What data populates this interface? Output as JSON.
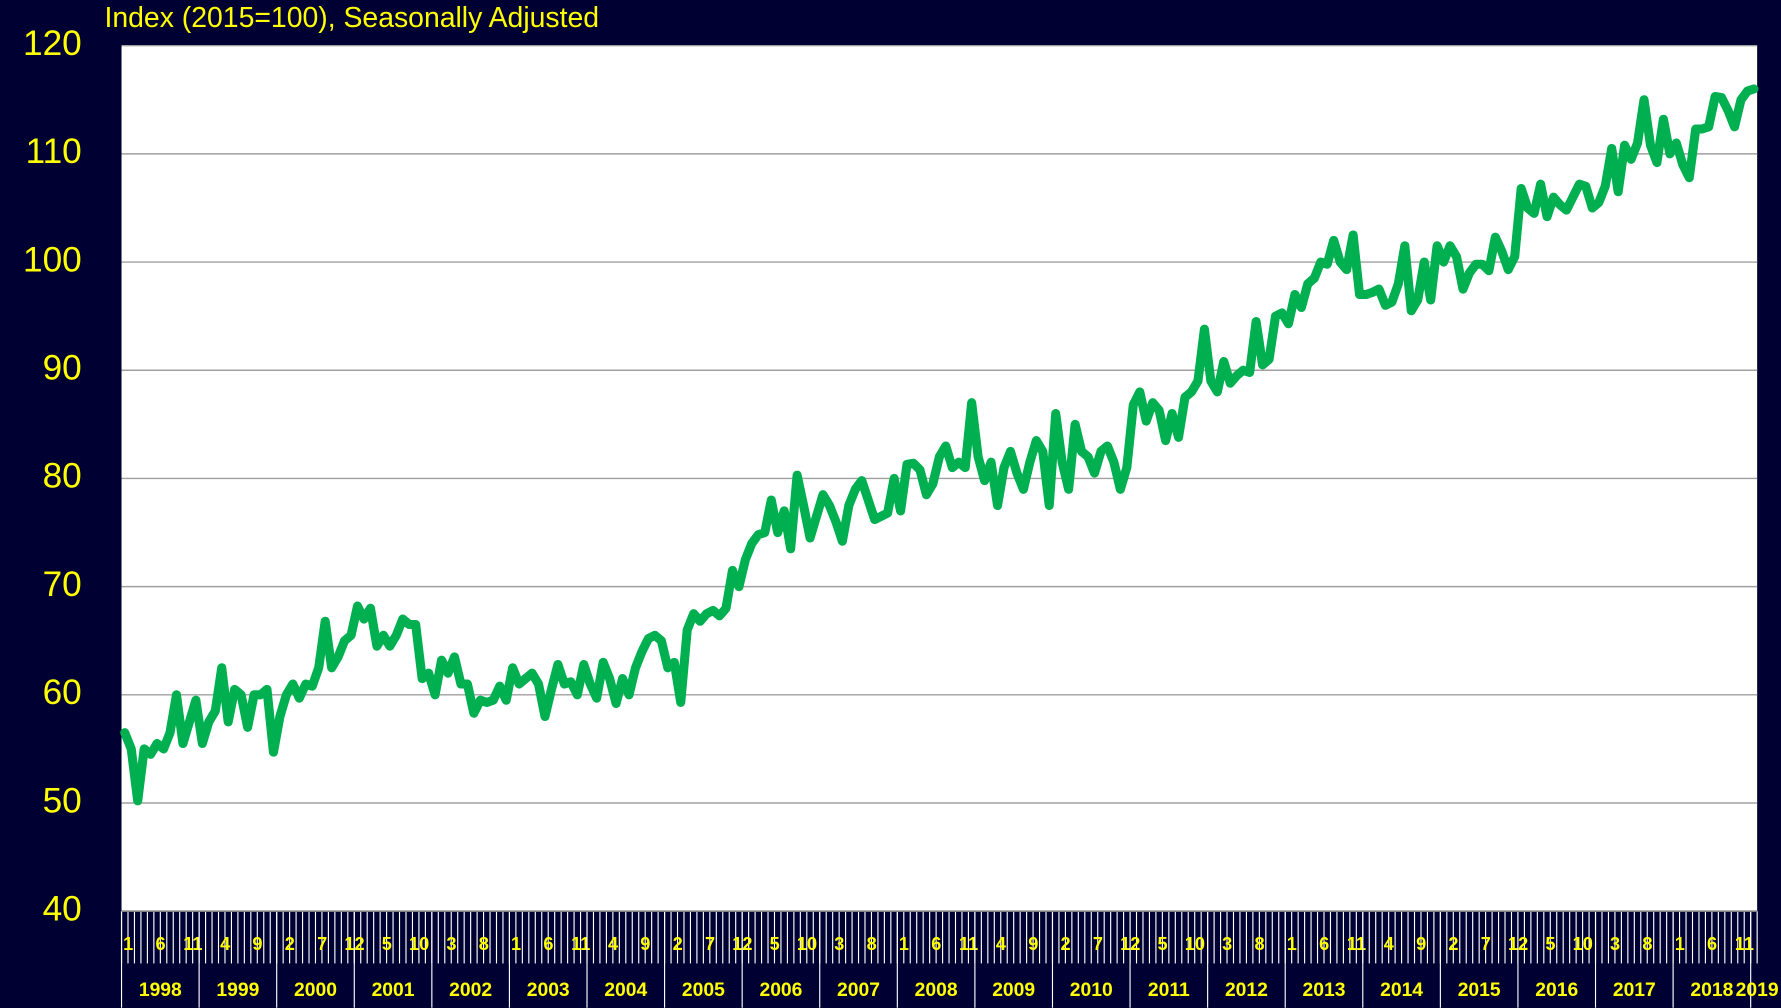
{
  "chart_data": {
    "type": "line",
    "title": "Index (2015=100), Seasonally Adjusted",
    "categories": [
      "1",
      null,
      null,
      null,
      null,
      "6",
      null,
      null,
      null,
      null,
      "11",
      null,
      null,
      null,
      null,
      "4",
      null,
      null,
      null,
      null,
      "9",
      null,
      null,
      null,
      null,
      "2",
      null,
      null,
      null,
      null,
      "7",
      null,
      null,
      null,
      null,
      "12",
      null,
      null,
      null,
      null,
      "5",
      null,
      null,
      null,
      null,
      "10",
      null,
      null,
      null,
      null,
      "3",
      null,
      null,
      null,
      null,
      "8",
      null,
      null,
      null,
      null,
      "1",
      null,
      null,
      null,
      null,
      "6",
      null,
      null,
      null,
      null,
      "11",
      null,
      null,
      null,
      null,
      "4",
      null,
      null,
      null,
      null,
      "9",
      null,
      null,
      null,
      null,
      "2",
      null,
      null,
      null,
      null,
      "7",
      null,
      null,
      null,
      null,
      "12",
      null,
      null,
      null,
      null,
      "5",
      null,
      null,
      null,
      null,
      "10",
      null,
      null,
      null,
      null,
      "3",
      null,
      null,
      null,
      null,
      "8",
      null,
      null,
      null,
      null,
      "1",
      null,
      null,
      null,
      null,
      "6",
      null,
      null,
      null,
      null,
      "11",
      null,
      null,
      null,
      null,
      "4",
      null,
      null,
      null,
      null,
      "9",
      null,
      null,
      null,
      null,
      "2",
      null,
      null,
      null,
      null,
      "7",
      null,
      null,
      null,
      null,
      "12",
      null,
      null,
      null,
      null,
      "5",
      null,
      null,
      null,
      null,
      "10",
      null,
      null,
      null,
      null,
      "3",
      null,
      null,
      null,
      null,
      "8",
      null,
      null,
      null,
      null,
      "1",
      null,
      null,
      null,
      null,
      "6",
      null,
      null,
      null,
      null,
      "11",
      null,
      null,
      null,
      null,
      "4",
      null,
      null,
      null,
      null,
      "9",
      null,
      null,
      null,
      null,
      "2",
      null,
      null,
      null,
      null,
      "7",
      null,
      null,
      null,
      null,
      "12",
      null,
      null,
      null,
      null,
      "5",
      null,
      null,
      null,
      null,
      "10",
      null,
      null,
      null,
      null,
      "3",
      null,
      null,
      null,
      null,
      "8",
      null,
      null,
      null,
      null,
      "1",
      null,
      null,
      null,
      null,
      "6",
      null,
      null,
      null,
      null,
      "11",
      null,
      null
    ],
    "year_labels": [
      "1998",
      "1999",
      "2000",
      "2001",
      "2002",
      "2003",
      "2004",
      "2005",
      "2006",
      "2007",
      "2008",
      "2009",
      "2010",
      "2011",
      "2012",
      "2013",
      "2014",
      "2015",
      "2016",
      "2017",
      "2018",
      "2019"
    ],
    "values": [
      56.5,
      55,
      50.2,
      55,
      54.5,
      55.5,
      55,
      56.5,
      60,
      55.5,
      57.5,
      59.5,
      55.5,
      57.5,
      58.5,
      62.5,
      57.5,
      60.5,
      60,
      57,
      60,
      60,
      60.5,
      54.7,
      58,
      60,
      61,
      59.7,
      61,
      60.8,
      62.5,
      66.8,
      62.5,
      63.5,
      65,
      65.5,
      68.2,
      67,
      68,
      64.5,
      65.5,
      64.5,
      65.5,
      67,
      66.5,
      66.5,
      61.5,
      62,
      60,
      63.2,
      62,
      63.5,
      61,
      61,
      58.3,
      59.5,
      59.3,
      59.5,
      60.8,
      59.5,
      62.5,
      61,
      61.5,
      62,
      61,
      58,
      60.5,
      62.8,
      61,
      61.2,
      60,
      62.8,
      61,
      59.7,
      63,
      61.5,
      59.2,
      61.5,
      60,
      62.5,
      64,
      65.2,
      65.5,
      65,
      62.5,
      63,
      59.3,
      66,
      67.5,
      66.8,
      67.5,
      67.8,
      67.3,
      68,
      71.5,
      70,
      72.5,
      74,
      74.8,
      75,
      78,
      75,
      77,
      73.5,
      80.3,
      77.5,
      74.5,
      76.5,
      78.5,
      77.5,
      76,
      74.2,
      77.5,
      79,
      79.8,
      78,
      76.2,
      76.5,
      76.8,
      80,
      77,
      81.3,
      81.4,
      80.8,
      78.5,
      79.5,
      82,
      83,
      81,
      81.5,
      81,
      87,
      82,
      79.8,
      81.5,
      77.5,
      81,
      82.5,
      80.5,
      79,
      81.5,
      83.5,
      82.5,
      77.5,
      86,
      81.5,
      79,
      85,
      82.5,
      82,
      80.5,
      82.5,
      83,
      81.5,
      79,
      81,
      86.8,
      88,
      85.3,
      87,
      86.3,
      83.5,
      86,
      83.8,
      87.5,
      88,
      89,
      93.8,
      89,
      88,
      90.8,
      88.8,
      89.5,
      90,
      89.8,
      94.5,
      90.5,
      91,
      95,
      95.3,
      94.3,
      97,
      95.8,
      98,
      98.5,
      100,
      99.8,
      102,
      100,
      99.3,
      102.5,
      97,
      97,
      97.2,
      97.5,
      96,
      96.3,
      98,
      101.5,
      95.5,
      96.5,
      100,
      96.5,
      101.5,
      100,
      101.5,
      100.5,
      97.5,
      99,
      99.8,
      99.8,
      99.2,
      102.3,
      101,
      99.3,
      100.5,
      106.8,
      105,
      104.5,
      107.2,
      104.2,
      106,
      105.3,
      104.8,
      106,
      107.2,
      107,
      105,
      105.5,
      107,
      110.5,
      106.5,
      110.8,
      109.5,
      111,
      115,
      110.8,
      109.2,
      113.2,
      110,
      111,
      109,
      107.8,
      112.3,
      112.3,
      112.5,
      115.3,
      115.2,
      114,
      112.5,
      115,
      115.8,
      116
    ],
    "color": "#00b050",
    "ylim": [
      40,
      120
    ],
    "yticks": [
      40,
      50,
      60,
      70,
      80,
      90,
      100,
      110,
      120
    ],
    "grid": true
  }
}
